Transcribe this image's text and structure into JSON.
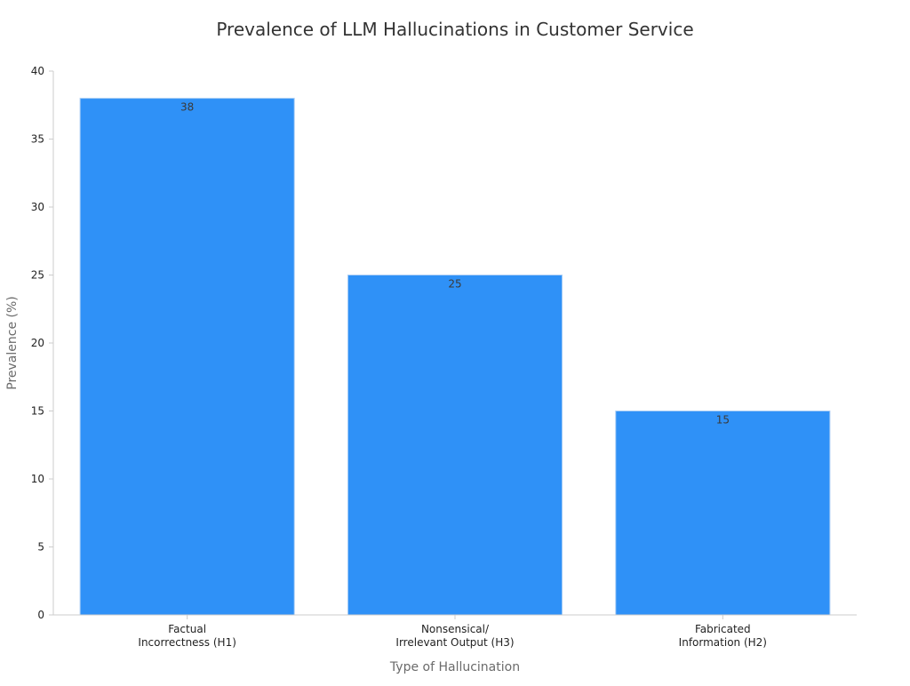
{
  "chart_data": {
    "type": "bar",
    "title": "Prevalence of LLM Hallucinations in Customer Service",
    "xlabel": "Type of Hallucination",
    "ylabel": "Prevalence (%)",
    "categories": [
      [
        "Factual",
        "Incorrectness (H1)"
      ],
      [
        "Nonsensical/",
        "Irrelevant Output (H3)"
      ],
      [
        "Fabricated",
        "Information (H2)"
      ]
    ],
    "values": [
      38,
      25,
      15
    ],
    "data_labels": [
      "38",
      "25",
      "15"
    ],
    "ylim": [
      0,
      40
    ],
    "yticks": [
      0,
      5,
      10,
      15,
      20,
      25,
      30,
      35,
      40
    ],
    "grid": false,
    "legend": "none",
    "colors": {
      "bar": "#2f91f7",
      "bar_edge": "#a9cdf5"
    }
  }
}
